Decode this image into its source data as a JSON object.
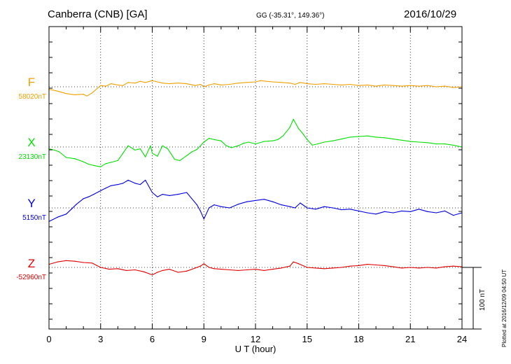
{
  "header": {
    "station": "Canberra (CNB)  [GA]",
    "coords": "GG (-35.31°, 149.36°)",
    "date": "2016/10/29"
  },
  "footer": {
    "plotted": "Plotted at 2016/12/09 04:50 UT",
    "scale": "100 nT"
  },
  "chart_data": {
    "type": "line",
    "xlabel": "U T (hour)",
    "xlim": [
      0,
      24
    ],
    "xticks": [
      0,
      3,
      6,
      9,
      12,
      15,
      18,
      21,
      24
    ],
    "scale_nT": 100,
    "grid": true,
    "series": [
      {
        "name": "F",
        "baseline": "58020nT",
        "baseline_value": 58020,
        "color": "#f0a000",
        "x": [
          0,
          0.5,
          1,
          1.5,
          2,
          2.2,
          2.5,
          3,
          3.3,
          3.6,
          4,
          4.3,
          4.6,
          5,
          5.3,
          5.6,
          6,
          6.3,
          6.6,
          7,
          7.5,
          8,
          8.5,
          8.8,
          9,
          9.3,
          9.6,
          10,
          10.5,
          11,
          11.5,
          12,
          12.3,
          12.6,
          13,
          13.5,
          14,
          14.3,
          14.6,
          15,
          15.5,
          16,
          16.5,
          17,
          17.5,
          18,
          18.5,
          19,
          19.5,
          20,
          20.5,
          21,
          21.5,
          22,
          22.5,
          23,
          23.5,
          24
        ],
        "y": [
          -4,
          -7,
          -11,
          -13,
          -12,
          -15,
          -10,
          2,
          1,
          5,
          3,
          2,
          7,
          6,
          9,
          7,
          10,
          8,
          6,
          5,
          6,
          5,
          2,
          4,
          0,
          3,
          5,
          3,
          4,
          6,
          7,
          8,
          10,
          9,
          8,
          7,
          6,
          4,
          7,
          5,
          4,
          5,
          4,
          3,
          4,
          2,
          3,
          1,
          3,
          2,
          1,
          2,
          1,
          2,
          0,
          1,
          -1,
          0
        ]
      },
      {
        "name": "X",
        "baseline": "23130nT",
        "baseline_value": 23130,
        "color": "#00e000",
        "x": [
          0,
          0.3,
          0.6,
          1,
          1.5,
          2,
          2.3,
          2.6,
          3,
          3.3,
          3.6,
          4,
          4.3,
          4.6,
          5,
          5.3,
          5.6,
          5.9,
          6,
          6.3,
          6.6,
          6.9,
          7.3,
          7.6,
          8,
          8.3,
          8.6,
          9,
          9.3,
          9.6,
          10,
          10.3,
          10.6,
          11,
          11.3,
          11.6,
          12,
          12.5,
          13,
          13.3,
          13.6,
          14,
          14.2,
          14.5,
          14.8,
          15,
          15.3,
          15.6,
          16,
          16.5,
          17,
          17.5,
          18,
          18.5,
          19,
          19.5,
          20,
          20.5,
          21,
          21.5,
          22,
          22.5,
          23,
          23.5,
          24
        ],
        "y": [
          -3,
          -5,
          -8,
          -17,
          -19,
          -24,
          -28,
          -30,
          -32,
          -27,
          -25,
          -22,
          -10,
          2,
          -5,
          -3,
          -16,
          2,
          -10,
          -15,
          2,
          -3,
          -20,
          -22,
          -14,
          -8,
          -4,
          8,
          14,
          12,
          10,
          2,
          -1,
          2,
          6,
          8,
          5,
          9,
          10,
          12,
          18,
          32,
          45,
          30,
          20,
          12,
          3,
          5,
          8,
          10,
          13,
          16,
          17,
          18,
          16,
          15,
          13,
          11,
          9,
          8,
          7,
          5,
          5,
          3,
          0
        ]
      },
      {
        "name": "Y",
        "baseline": "5150nT",
        "baseline_value": 5150,
        "color": "#0000e0",
        "x": [
          0,
          0.5,
          1,
          1.3,
          1.6,
          2,
          2.3,
          2.6,
          3,
          3.3,
          3.6,
          4,
          4.3,
          4.6,
          5,
          5.3,
          5.6,
          6,
          6.3,
          6.6,
          7,
          7.5,
          8,
          8.3,
          8.6,
          8.8,
          9,
          9.3,
          9.6,
          10,
          10.5,
          11,
          11.5,
          12,
          12.5,
          13,
          13.5,
          14,
          14.3,
          14.6,
          15,
          15.5,
          16,
          16.5,
          17,
          17.5,
          18,
          18.5,
          19,
          19.5,
          20,
          20.5,
          21,
          21.5,
          22,
          22.5,
          23,
          23.5,
          24
        ],
        "y": [
          -22,
          -15,
          -10,
          -2,
          6,
          15,
          18,
          22,
          28,
          32,
          36,
          38,
          40,
          45,
          40,
          38,
          45,
          25,
          18,
          22,
          20,
          22,
          25,
          15,
          5,
          -5,
          -18,
          0,
          5,
          2,
          0,
          6,
          10,
          12,
          14,
          10,
          5,
          2,
          0,
          8,
          0,
          -2,
          2,
          0,
          -3,
          -2,
          -5,
          -8,
          -10,
          -6,
          -8,
          -5,
          -6,
          -2,
          -6,
          -8,
          -5,
          -12,
          -8
        ]
      },
      {
        "name": "Z",
        "baseline": "-52960nT",
        "baseline_value": -52960,
        "color": "#e00000",
        "x": [
          0,
          0.5,
          1,
          1.5,
          2,
          2.5,
          3,
          3.5,
          4,
          4.5,
          5,
          5.5,
          6,
          6.3,
          6.6,
          7,
          7.5,
          8,
          8.5,
          8.8,
          9,
          9.3,
          9.6,
          10,
          10.5,
          11,
          11.5,
          12,
          12.5,
          13,
          13.5,
          14,
          14.2,
          14.5,
          15,
          15.5,
          16,
          16.5,
          17,
          17.5,
          18,
          18.5,
          19,
          19.5,
          20,
          20.5,
          21,
          21.5,
          22,
          22.5,
          23,
          23.5,
          24
        ],
        "y": [
          5,
          9,
          11,
          10,
          8,
          7,
          0,
          -3,
          -2,
          -5,
          -4,
          -7,
          -12,
          -8,
          -5,
          -3,
          -8,
          -6,
          -1,
          2,
          6,
          0,
          -2,
          -3,
          -4,
          -5,
          -4,
          -3,
          -5,
          -3,
          -1,
          2,
          9,
          6,
          0,
          -1,
          -2,
          -1,
          0,
          2,
          3,
          5,
          4,
          3,
          1,
          -1,
          0,
          -1,
          0,
          -1,
          1,
          2,
          1
        ]
      }
    ]
  }
}
